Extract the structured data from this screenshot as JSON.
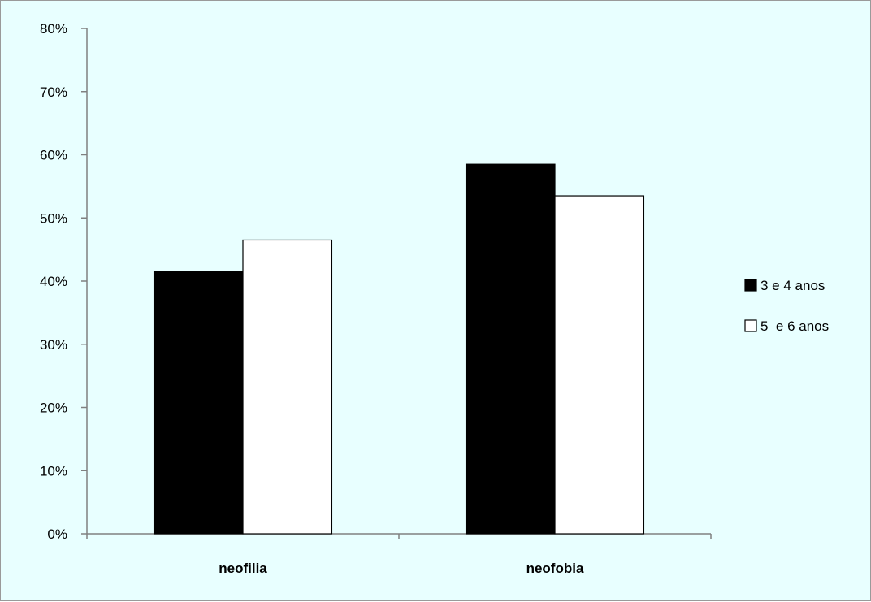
{
  "chart_data": {
    "type": "bar",
    "title": "",
    "xlabel": "",
    "ylabel": "",
    "categories": [
      "neofilia",
      "neofobia"
    ],
    "series": [
      {
        "name": "3 e 4 anos",
        "values": [
          41.5,
          58.5
        ],
        "color": "#000000"
      },
      {
        "name": "5  e 6 anos",
        "values": [
          46.5,
          53.5
        ],
        "color": "#ffffff"
      }
    ],
    "ylim": [
      0,
      80
    ],
    "yticks": [
      0,
      10,
      20,
      30,
      40,
      50,
      60,
      70,
      80
    ],
    "ytick_labels": [
      "0%",
      "10%",
      "20%",
      "30%",
      "40%",
      "50%",
      "60%",
      "70%",
      "80%"
    ],
    "y_unit": "%",
    "grid": false,
    "legend_position": "right",
    "background_color": "#e8ffff"
  }
}
